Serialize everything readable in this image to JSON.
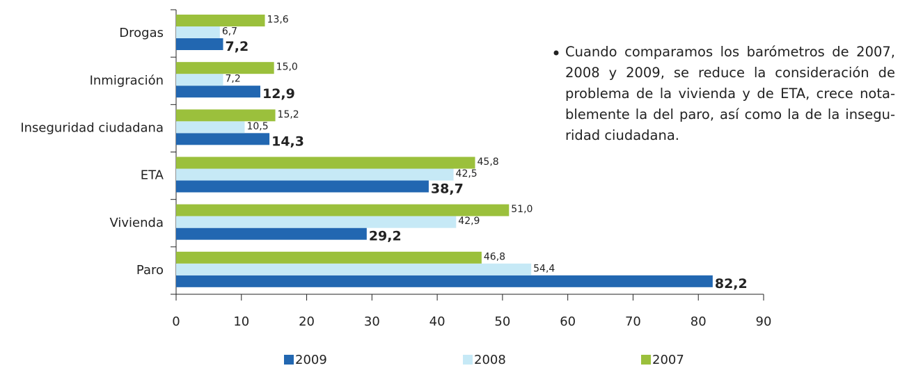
{
  "chart_data": {
    "type": "bar",
    "orientation": "horizontal",
    "categories": [
      "Drogas",
      "Inmigración",
      "Inseguridad ciudadana",
      "ETA",
      "Vivienda",
      "Paro"
    ],
    "series": [
      {
        "name": "2009",
        "color": "#2267b1",
        "values": [
          7.2,
          12.9,
          14.3,
          38.7,
          29.2,
          82.2
        ],
        "value_labels": [
          "7,2",
          "12,9",
          "14,3",
          "38,7",
          "29,2",
          "82,2"
        ]
      },
      {
        "name": "2008",
        "color": "#c6e9f6",
        "values": [
          6.7,
          7.2,
          10.5,
          42.5,
          42.9,
          54.4
        ],
        "value_labels": [
          "6,7",
          "7,2",
          "10,5",
          "42,5",
          "42,9",
          "54,4"
        ]
      },
      {
        "name": "2007",
        "color": "#9bc03c",
        "values": [
          13.6,
          15.0,
          15.2,
          45.8,
          51.0,
          46.8
        ],
        "value_labels": [
          "13,6",
          "15,0",
          "15,2",
          "45,8",
          "51,0",
          "46,8"
        ]
      }
    ],
    "xlim": [
      0,
      90
    ],
    "xticks": [
      0,
      10,
      20,
      30,
      40,
      50,
      60,
      70,
      80,
      90
    ],
    "annotation": [
      "Cuando comparamos los barómetros de 2007,",
      "2008 y 2009, se reduce la consideración de",
      "problema de la vivienda y de ETA, crece nota-",
      "blemente la del paro, así como la de la insegu-",
      "ridad ciudadana."
    ]
  }
}
